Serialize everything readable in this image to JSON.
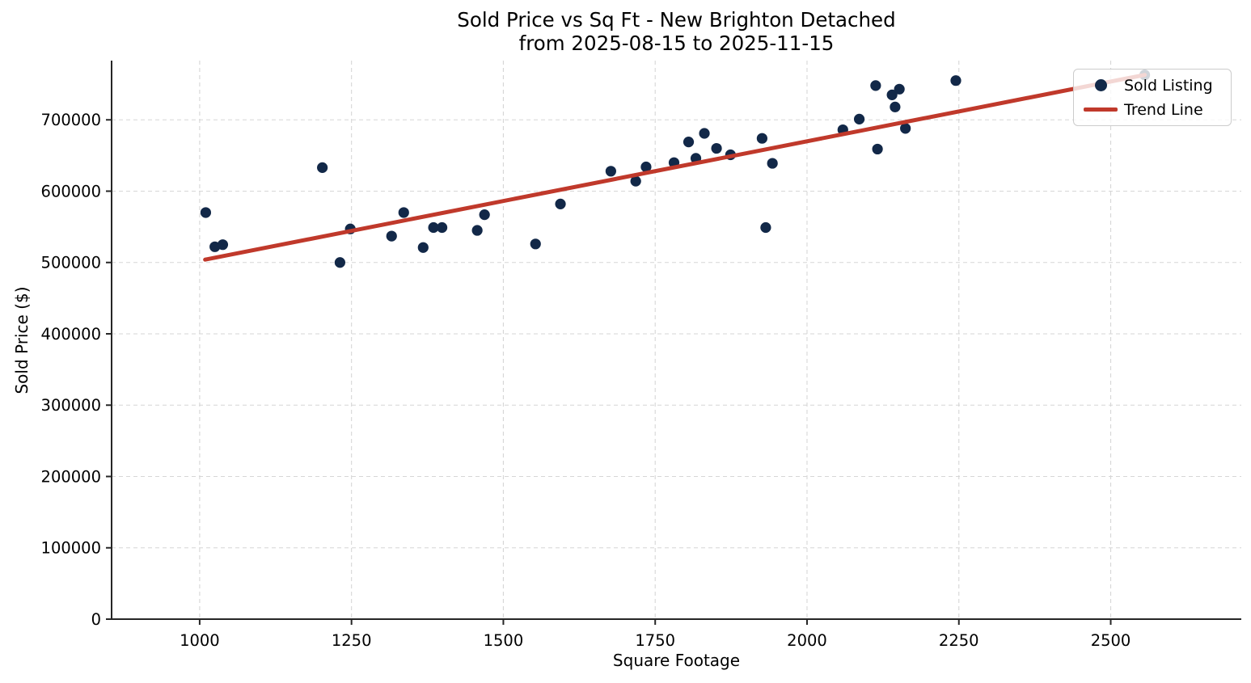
{
  "figure": {
    "title": "Sold Price vs Sq Ft - New Brighton Detached",
    "subtitle": "from 2025-08-15 to 2025-11-15"
  },
  "legend": {
    "items": [
      {
        "label": "Sold Listing",
        "marker": "dot",
        "color": "#122848"
      },
      {
        "label": "Trend Line",
        "marker": "line",
        "color": "#c0392b"
      }
    ],
    "position": "upper right"
  },
  "colors": {
    "scatter": "#122848",
    "trend": "#c0392b",
    "grid": "#d6d6d6",
    "spine": "#262626",
    "background": "#ffffff"
  },
  "chart_data": {
    "type": "scatter",
    "title": "Sold Price vs Sq Ft - New Brighton Detached",
    "subtitle": "from 2025-08-15 to 2025-11-15",
    "xlabel": "Square Footage",
    "ylabel": "Sold Price ($)",
    "xlim": [
      855,
      2715
    ],
    "ylim": [
      0,
      783000
    ],
    "xticks": [
      1000,
      1250,
      1500,
      1750,
      2000,
      2250,
      2500
    ],
    "yticks": [
      0,
      100000,
      200000,
      300000,
      400000,
      500000,
      600000,
      700000
    ],
    "grid": true,
    "grid_style": "dashed",
    "legend_position": "upper right",
    "series": [
      {
        "name": "Sold Listing",
        "type": "scatter",
        "color": "#122848",
        "points": [
          [
            1010,
            570000
          ],
          [
            1025,
            522000
          ],
          [
            1038,
            525000
          ],
          [
            1202,
            633000
          ],
          [
            1231,
            500000
          ],
          [
            1248,
            547000
          ],
          [
            1316,
            537000
          ],
          [
            1336,
            570000
          ],
          [
            1368,
            521000
          ],
          [
            1385,
            549000
          ],
          [
            1399,
            549000
          ],
          [
            1457,
            545000
          ],
          [
            1469,
            567000
          ],
          [
            1553,
            526000
          ],
          [
            1594,
            582000
          ],
          [
            1677,
            628000
          ],
          [
            1718,
            614000
          ],
          [
            1735,
            634000
          ],
          [
            1781,
            640000
          ],
          [
            1805,
            669000
          ],
          [
            1817,
            646000
          ],
          [
            1831,
            681000
          ],
          [
            1851,
            660000
          ],
          [
            1874,
            651000
          ],
          [
            1926,
            674000
          ],
          [
            1932,
            549000
          ],
          [
            1943,
            639000
          ],
          [
            2059,
            686000
          ],
          [
            2086,
            701000
          ],
          [
            2113,
            748000
          ],
          [
            2116,
            659000
          ],
          [
            2140,
            735000
          ],
          [
            2145,
            718000
          ],
          [
            2152,
            743000
          ],
          [
            2162,
            688000
          ],
          [
            2245,
            755000
          ],
          [
            2556,
            763000
          ]
        ]
      },
      {
        "name": "Trend Line",
        "type": "line",
        "color": "#c0392b",
        "points": [
          [
            1009,
            504000
          ],
          [
            2556,
            763000
          ]
        ]
      }
    ]
  }
}
